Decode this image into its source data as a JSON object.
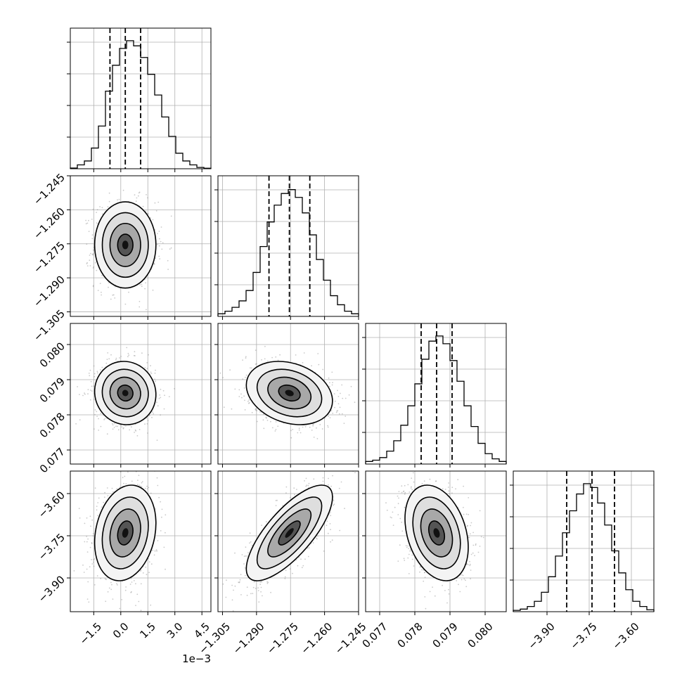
{
  "chart_data": {
    "type": "corner",
    "grid": true,
    "parameters": [
      {
        "range": [
          -2.8,
          5.0
        ],
        "ticks": [
          -1.5,
          0.0,
          1.5,
          3.0,
          4.5
        ],
        "tick_labels": [
          "−1.5",
          "0.0",
          "1.5",
          "3.0",
          "4.5"
        ],
        "offset_label": "1e−3",
        "mean": 0.25,
        "sd": 0.85,
        "quantiles": [
          -0.6,
          0.25,
          1.1
        ],
        "histogram": [
          0.005,
          0.03,
          0.06,
          0.16,
          0.33,
          0.6,
          0.8,
          0.93,
          0.99,
          0.95,
          0.86,
          0.73,
          0.57,
          0.4,
          0.25,
          0.12,
          0.06,
          0.03,
          0.01,
          0.004
        ]
      },
      {
        "range": [
          -1.307,
          -1.245
        ],
        "ticks": [
          -1.305,
          -1.29,
          -1.275,
          -1.26,
          -1.245
        ],
        "tick_labels": [
          "−1.305",
          "−1.290",
          "−1.275",
          "−1.260",
          "−1.245"
        ],
        "mean": -1.2755,
        "sd": 0.0095,
        "quantiles": [
          -1.2845,
          -1.2755,
          -1.2665
        ],
        "histogram": [
          0.02,
          0.04,
          0.07,
          0.12,
          0.2,
          0.34,
          0.54,
          0.73,
          0.86,
          0.95,
          0.98,
          0.92,
          0.8,
          0.63,
          0.44,
          0.28,
          0.16,
          0.09,
          0.04,
          0.02
        ]
      },
      {
        "range": [
          0.0766,
          0.0806
        ],
        "ticks": [
          0.077,
          0.078,
          0.079,
          0.08
        ],
        "tick_labels": [
          "0.077",
          "0.078",
          "0.079",
          "0.080"
        ],
        "mean": 0.07862,
        "sd": 0.00045,
        "quantiles": [
          0.07818,
          0.07862,
          0.07906
        ],
        "histogram": [
          0.02,
          0.03,
          0.05,
          0.1,
          0.18,
          0.3,
          0.45,
          0.62,
          0.81,
          0.95,
          0.99,
          0.93,
          0.8,
          0.64,
          0.45,
          0.29,
          0.16,
          0.08,
          0.04,
          0.02
        ]
      },
      {
        "range": [
          -4.02,
          -3.52
        ],
        "ticks": [
          -3.9,
          -3.75,
          -3.6
        ],
        "tick_labels": [
          "−3.90",
          "−3.75",
          "−3.60"
        ],
        "mean": -3.74,
        "sd": 0.085,
        "quantiles": [
          -3.83,
          -3.74,
          -3.66
        ],
        "histogram": [
          0.01,
          0.02,
          0.04,
          0.08,
          0.15,
          0.27,
          0.43,
          0.61,
          0.78,
          0.91,
          0.99,
          0.96,
          0.84,
          0.67,
          0.47,
          0.3,
          0.17,
          0.08,
          0.04,
          0.015
        ]
      }
    ],
    "correlations": [
      {
        "i": 1,
        "j": 0,
        "rho": 0.0
      },
      {
        "i": 2,
        "j": 0,
        "rho": -0.05
      },
      {
        "i": 2,
        "j": 1,
        "rho": -0.25
      },
      {
        "i": 3,
        "j": 0,
        "rho": 0.2
      },
      {
        "i": 3,
        "j": 1,
        "rho": 0.75
      },
      {
        "i": 3,
        "j": 2,
        "rho": -0.3
      }
    ],
    "contour_levels_sigma": [
      0.5,
      1.0,
      1.5,
      2.0
    ]
  }
}
